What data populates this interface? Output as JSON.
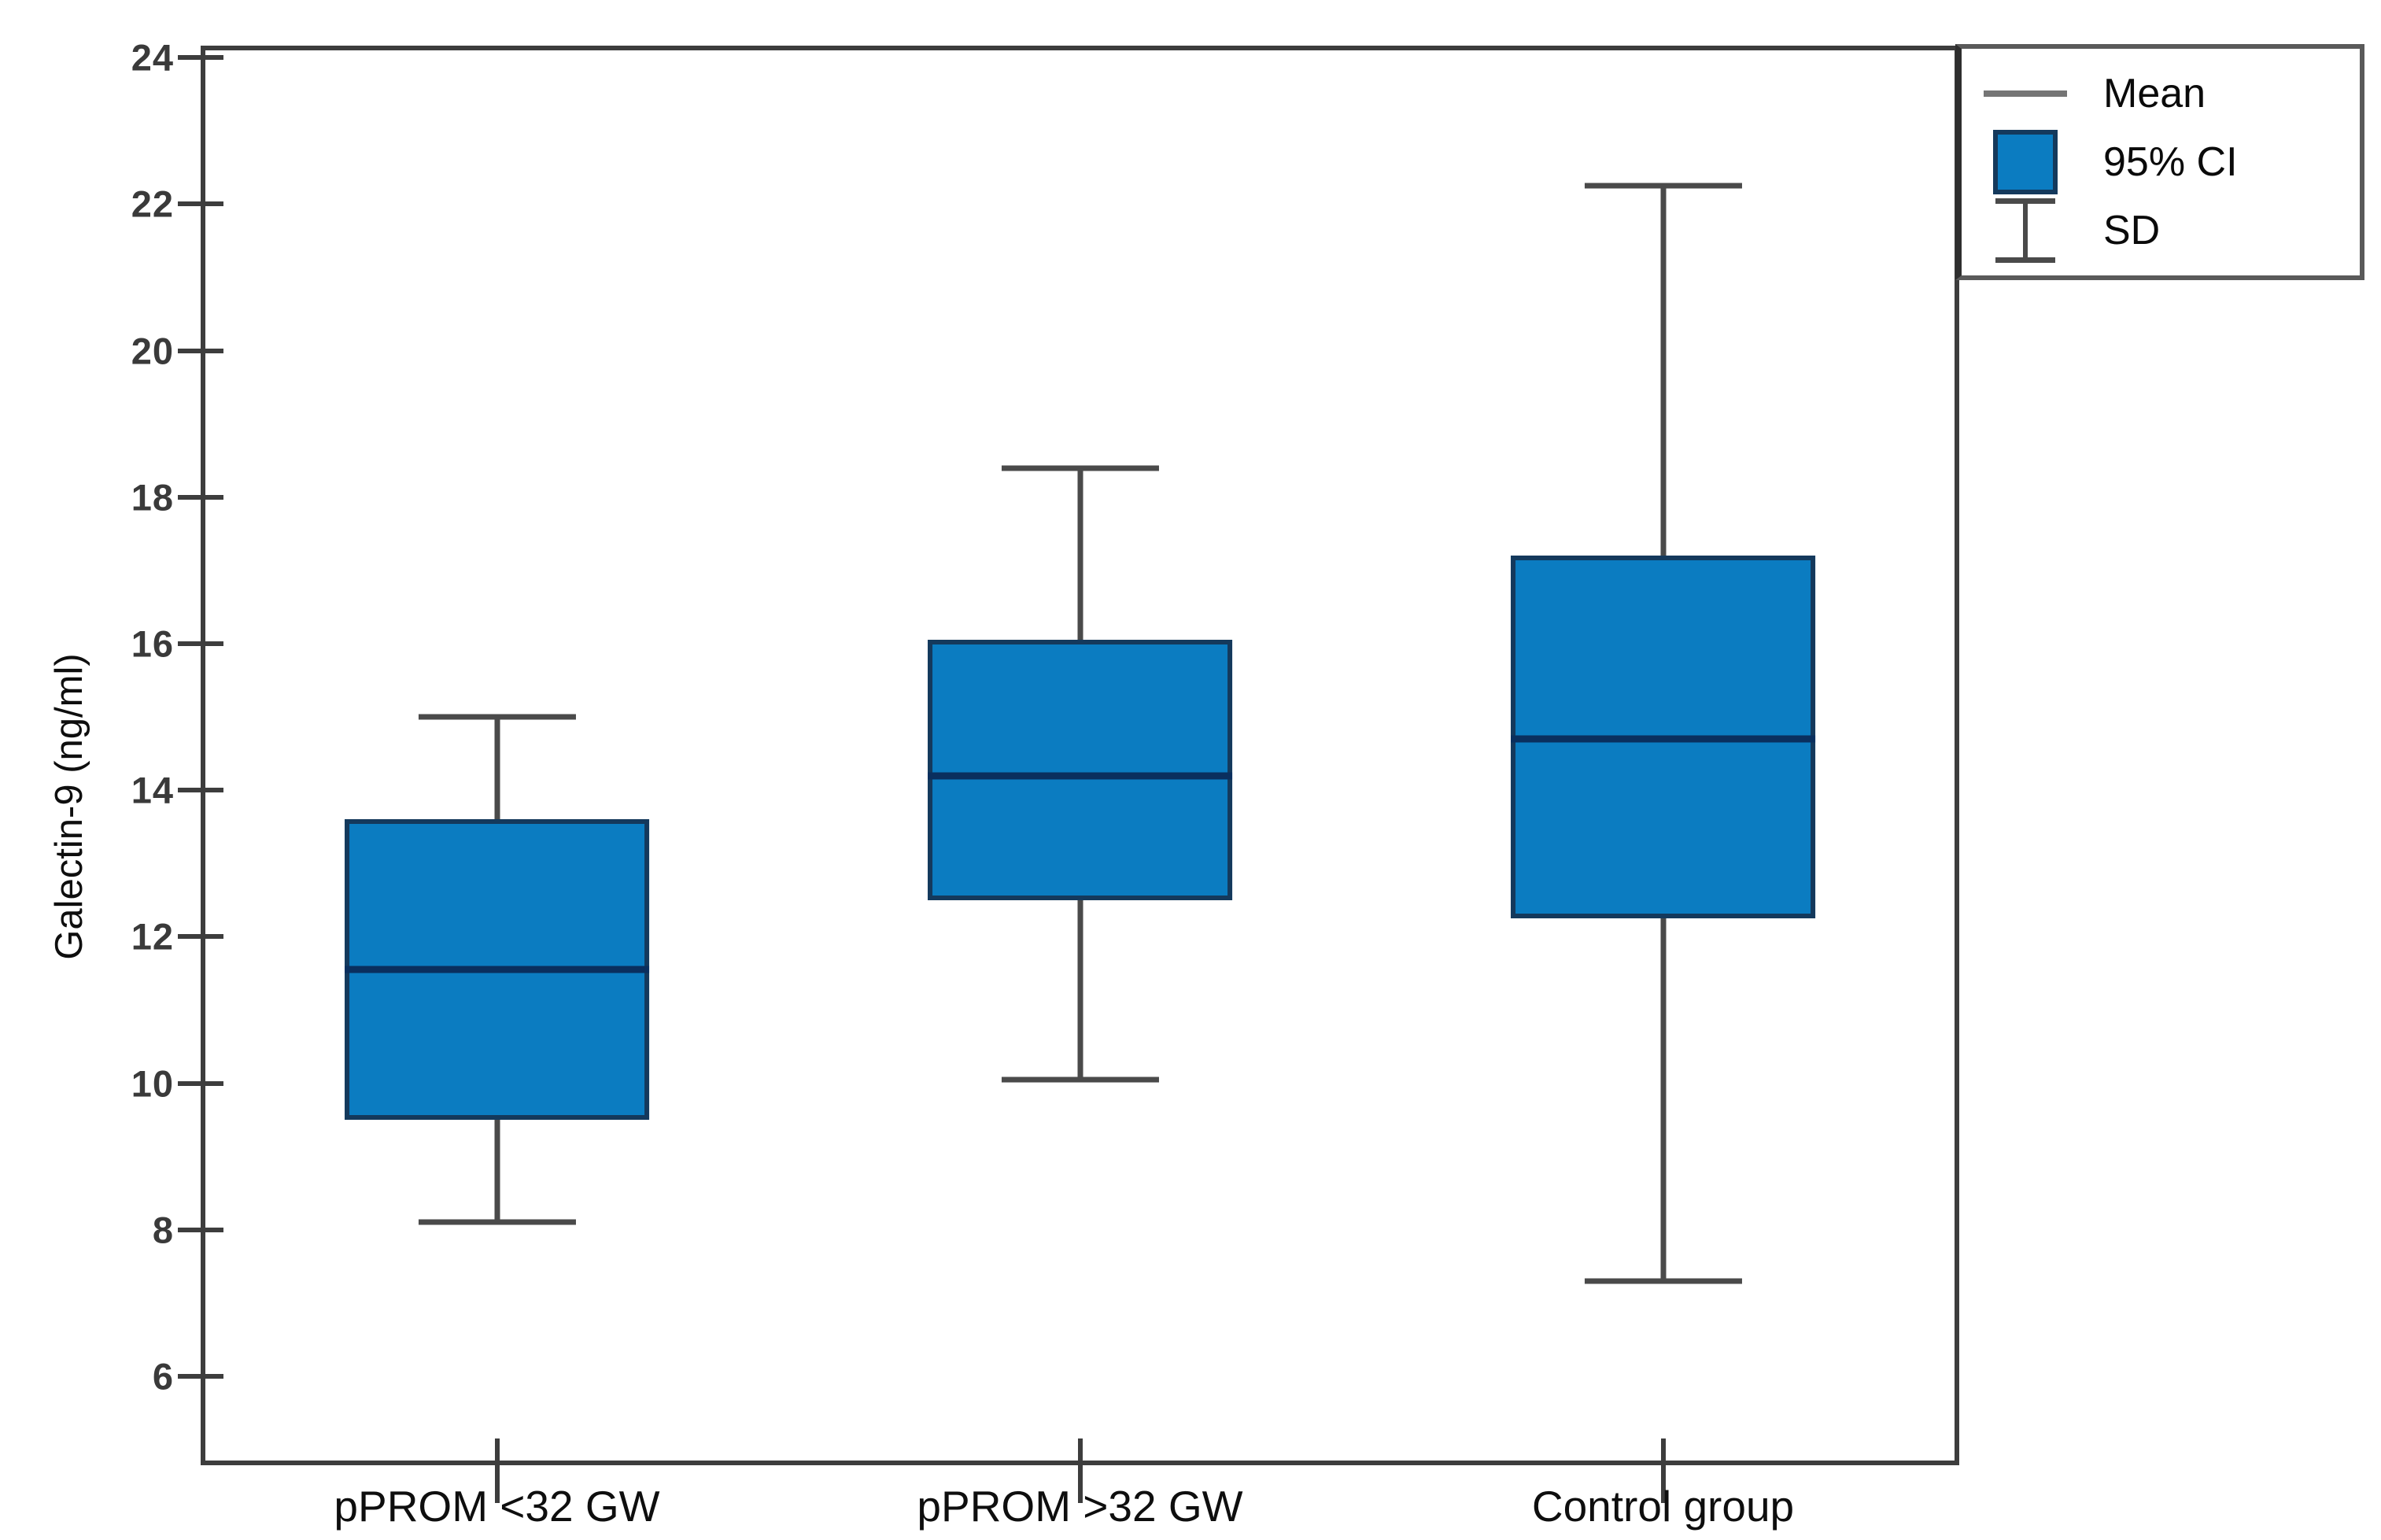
{
  "chart_data": {
    "type": "box",
    "title": "",
    "ylabel": "Galectin-9 (ng/ml)",
    "xlabel": "",
    "ylim": [
      4.85,
      24.1
    ],
    "yticks": [
      24,
      22,
      20,
      18,
      16,
      14,
      12,
      10,
      8,
      6
    ],
    "categories": [
      "pPROM <32 GW",
      "pPROM >32 GW",
      "Control group"
    ],
    "series": [
      {
        "name": "pPROM <32 GW",
        "mean": 11.55,
        "ci95_low": 9.5,
        "ci95_high": 13.6,
        "sd_low": 8.1,
        "sd_high": 15.0
      },
      {
        "name": "pPROM >32 GW",
        "mean": 14.2,
        "ci95_low": 12.5,
        "ci95_high": 16.05,
        "sd_low": 10.05,
        "sd_high": 18.4
      },
      {
        "name": "Control group",
        "mean": 14.7,
        "ci95_low": 12.25,
        "ci95_high": 17.2,
        "sd_low": 7.3,
        "sd_high": 22.25
      }
    ],
    "grid": false,
    "legend": {
      "position": "top-right",
      "items": [
        {
          "symbol": "mean-line",
          "label": "Mean"
        },
        {
          "symbol": "ci-box",
          "label": "95% CI"
        },
        {
          "symbol": "sd-whisker",
          "label": "SD"
        }
      ]
    },
    "colors": {
      "box_fill": "#0b7cc1",
      "box_border": "#14395c",
      "mean_line": "#0a2f5e",
      "whisker": "#4a4a4a",
      "axis_frame": "#3d3d3d",
      "tick_label": "#3a3a3a",
      "text": "#0e0e0e",
      "legend_border": "#5a5a5a",
      "legend_mean_swatch": "#757575"
    }
  }
}
